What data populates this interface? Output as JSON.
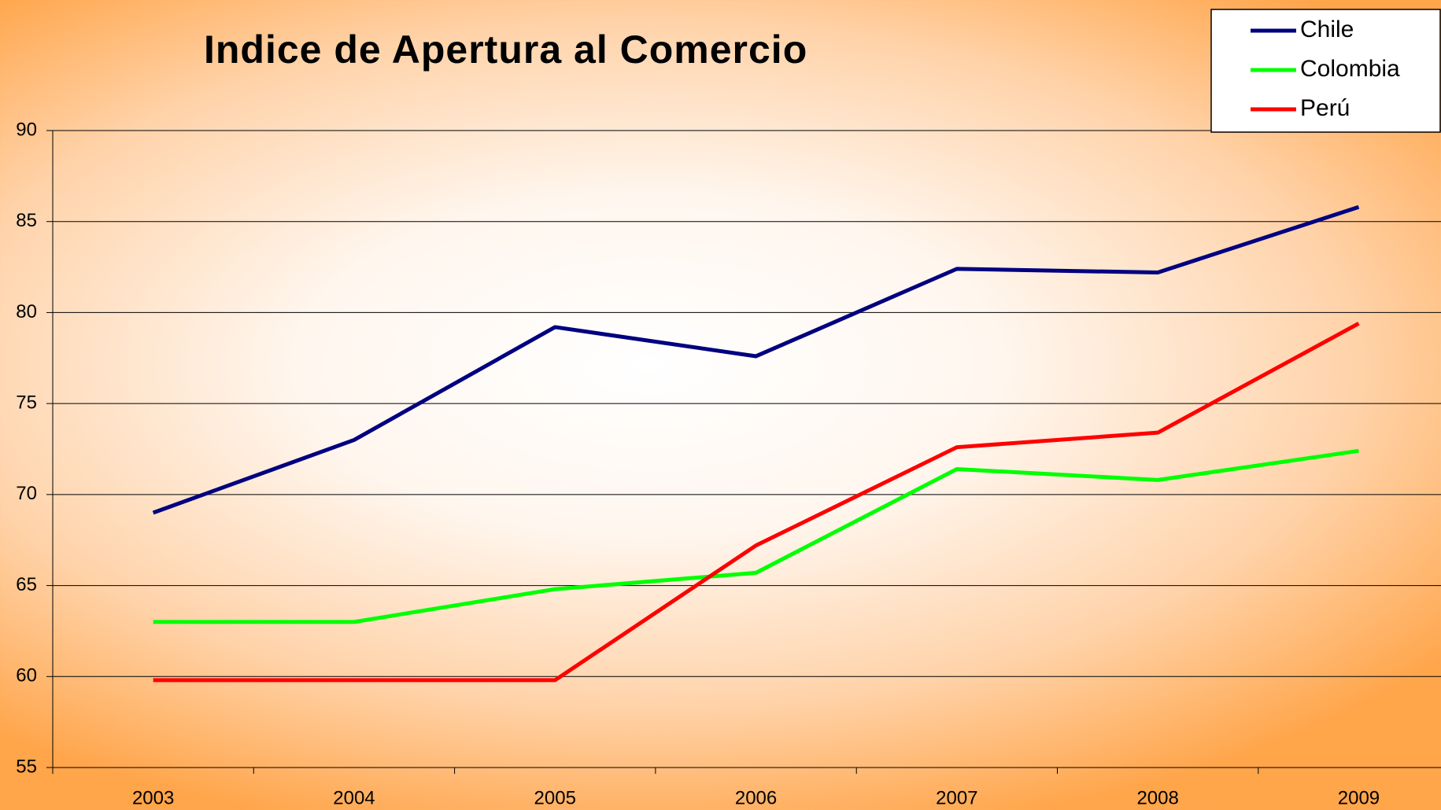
{
  "chart_data": {
    "type": "line",
    "title": "Indice de Apertura al Comercio",
    "categories": [
      "2003",
      "2004",
      "2005",
      "2006",
      "2007",
      "2008",
      "2009"
    ],
    "series": [
      {
        "name": "Chile",
        "color": "#000080",
        "values": [
          69.0,
          73.0,
          79.2,
          77.6,
          82.4,
          82.2,
          85.8
        ]
      },
      {
        "name": "Colombia",
        "color": "#00ff00",
        "values": [
          63.0,
          63.0,
          64.8,
          65.7,
          71.4,
          70.8,
          72.4
        ]
      },
      {
        "name": "Perú",
        "color": "#ff0000",
        "values": [
          59.8,
          59.8,
          59.8,
          67.2,
          72.6,
          73.4,
          79.4
        ]
      }
    ],
    "ylim": [
      55,
      90
    ],
    "yticks": [
      55,
      60,
      65,
      70,
      75,
      80,
      85,
      90
    ],
    "grid": true,
    "legend": "top-right"
  }
}
